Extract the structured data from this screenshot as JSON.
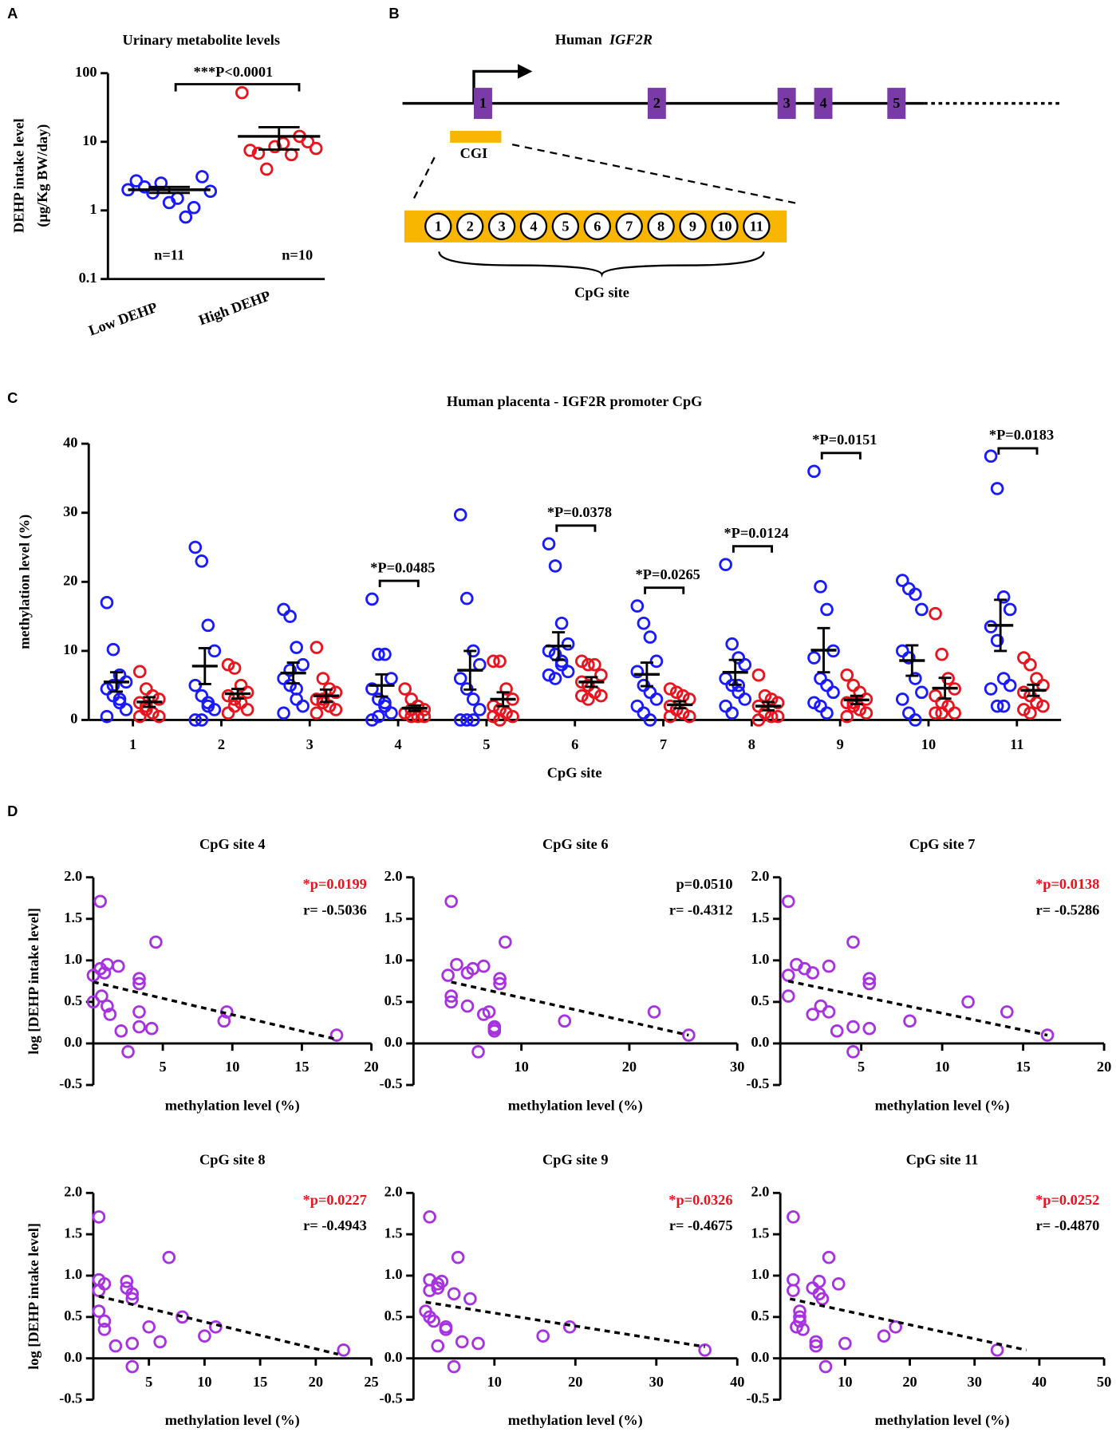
{
  "panel_labels": [
    "A",
    "B",
    "C",
    "D"
  ],
  "diagram": {
    "title": "Human",
    "gene": "IGF2R",
    "exons": [
      "1",
      "2",
      "3",
      "4",
      "5"
    ],
    "cgi": "CGI",
    "cpg_sites": [
      "1",
      "2",
      "3",
      "4",
      "5",
      "6",
      "7",
      "8",
      "9",
      "10",
      "11"
    ],
    "cpg_label": "CpG site"
  },
  "chart_data": [
    {
      "type": "strip",
      "title": "Urinary metabolite levels",
      "ylabel": [
        "DEHP intake level",
        "(μg/Kg BW/day)"
      ],
      "log": true,
      "categories": [
        "Low DEHP",
        "High DEHP"
      ],
      "ylim": [
        0.1,
        100
      ],
      "yticks": [
        0.1,
        1,
        10,
        100
      ],
      "series": [
        {
          "color": "#1a1aff",
          "values": [
            2.0,
            2.7,
            2.2,
            1.8,
            2.5,
            1.3,
            1.5,
            0.8,
            1.1,
            3.1,
            1.9
          ],
          "mean": 2.0,
          "sem": 0.2
        },
        {
          "color": "#e8141e",
          "values": [
            52,
            7.5,
            6.8,
            4.0,
            8.5,
            9.5,
            6.5,
            12,
            10,
            8.0
          ],
          "mean": 12,
          "sem": 4.3
        }
      ],
      "n_labels": [
        "n=11",
        "n=10"
      ],
      "annotation": "***P<0.0001"
    },
    {
      "type": "dotplot",
      "title": "Human placenta - IGF2R promoter CpG",
      "xlabel": "CpG site",
      "ylabel": "methylation level (%)",
      "categories": [
        "1",
        "2",
        "3",
        "4",
        "5",
        "6",
        "7",
        "8",
        "9",
        "10",
        "11"
      ],
      "ylim": [
        0,
        40
      ],
      "yticks": [
        0,
        10,
        20,
        30,
        40
      ],
      "annotations": [
        null,
        null,
        null,
        "*P=0.0485",
        null,
        "*P=0.0378",
        "*P=0.0265",
        "*P=0.0124",
        "*P=0.0151",
        null,
        "*P=0.0183"
      ],
      "series": [
        {
          "color": "#1a1aff",
          "values": [
            [
              17,
              10.2,
              6.5,
              5.5,
              4.5,
              3.5,
              2.5,
              1.5,
              0.5,
              5,
              3
            ],
            [
              25,
              23,
              13.7,
              10,
              5,
              3.5,
              2.5,
              1.5,
              0,
              0,
              2
            ],
            [
              16,
              15,
              10.5,
              8,
              6,
              5,
              3,
              2,
              1,
              7.2,
              4.5
            ],
            [
              17.5,
              9.5,
              9.5,
              6,
              4.5,
              3,
              2,
              1,
              0,
              0.5,
              2.5
            ],
            [
              29.7,
              17.6,
              10,
              8,
              6,
              4.5,
              3,
              1.5,
              0,
              0,
              0
            ],
            [
              25.5,
              22.3,
              14,
              11,
              10,
              9.5,
              8,
              7,
              6.5,
              6,
              8.5
            ],
            [
              16.5,
              14,
              12,
              8.5,
              7,
              5,
              4,
              3,
              2,
              1,
              0
            ],
            [
              22.5,
              11,
              9,
              8,
              6,
              5,
              4,
              3,
              2,
              1,
              5
            ],
            [
              36,
              19.3,
              16,
              10,
              9,
              6,
              5,
              4,
              2.5,
              2,
              1
            ],
            [
              20.2,
              19,
              18.2,
              16,
              10,
              9,
              6,
              4,
              3,
              1,
              0
            ],
            [
              38.2,
              33.5,
              17.8,
              16,
              13.5,
              11.5,
              6,
              5,
              4.5,
              2,
              2
            ]
          ],
          "means": [
            5.5,
            7.8,
            6.8,
            5,
            7.2,
            10.7,
            6.6,
            6.9,
            10.1,
            8.6,
            13.7
          ],
          "sems": [
            1.4,
            2.6,
            1.5,
            1.6,
            2.8,
            2.0,
            1.7,
            1.8,
            3.2,
            2.2,
            3.7
          ]
        },
        {
          "color": "#e8141e",
          "values": [
            [
              7,
              4.5,
              3.5,
              3,
              2.5,
              2,
              1,
              0.5,
              0.5,
              1.5
            ],
            [
              8,
              7.5,
              5,
              4,
              3.5,
              3,
              2.5,
              1.5,
              1,
              2
            ],
            [
              10.5,
              6,
              4.5,
              4,
              3,
              2.5,
              2,
              1.5,
              1,
              3
            ],
            [
              4.5,
              3,
              2,
              1.5,
              1,
              0.5,
              0.5,
              0.5,
              1,
              1.5
            ],
            [
              8.5,
              8.5,
              4.5,
              3,
              2,
              1.5,
              1,
              0.5,
              0.5,
              0
            ],
            [
              8.5,
              8,
              8,
              6.5,
              5.5,
              5,
              4,
              3.5,
              3.5,
              3
            ],
            [
              4.5,
              4,
              3.5,
              3,
              2,
              1.5,
              1,
              0.5,
              0.5,
              1.5
            ],
            [
              6.5,
              3.5,
              3,
              2.5,
              2,
              1,
              0.5,
              0.5,
              0,
              1
            ],
            [
              6.5,
              5,
              4,
              3,
              2.5,
              2,
              1.5,
              1,
              0.5,
              2.5
            ],
            [
              15.4,
              9.5,
              6,
              4.5,
              3.5,
              2.5,
              2,
              1,
              1,
              1
            ],
            [
              9,
              8,
              6,
              5,
              4,
              3.5,
              2.5,
              2,
              1.5,
              1
            ]
          ],
          "means": [
            2.6,
            3.8,
            3.5,
            1.7,
            3,
            5.5,
            2.2,
            2,
            2.9,
            4.6,
            4.3
          ],
          "sems": [
            0.7,
            0.7,
            0.9,
            0.4,
            1,
            0.7,
            0.5,
            0.6,
            0.6,
            1.5,
            0.8
          ]
        }
      ]
    },
    {
      "type": "scatter",
      "title": "CpG site 4",
      "xlabel": "methylation level (%)",
      "ylabel": "log [DEHP intake level]",
      "color": "#a632e0",
      "x": [
        0.5,
        0,
        0,
        1,
        0.8,
        0.6,
        1,
        1.2,
        1.8,
        2,
        2.5,
        3.3,
        3.3,
        3.3,
        3.3,
        4.2,
        4.5,
        9.6,
        9.4,
        17.5,
        0.5
      ],
      "y": [
        1.71,
        0.82,
        0.5,
        0.95,
        0.85,
        0.57,
        0.45,
        0.35,
        0.93,
        0.15,
        -0.1,
        0.78,
        0.72,
        0.38,
        0.2,
        0.18,
        1.22,
        0.38,
        0.27,
        0.1,
        0.9
      ],
      "xlim": [
        0,
        20
      ],
      "xticks": [
        5,
        10,
        15,
        20
      ],
      "ylim": [
        -0.5,
        2
      ],
      "yticks": [
        -0.5,
        {
          "value": 0,
          "label": "0.0"
        },
        0.5,
        {
          "value": 1,
          "label": "1.0"
        },
        1.5,
        {
          "value": 2,
          "label": "2.0"
        }
      ],
      "trend": {
        "x": [
          0,
          17.5
        ],
        "y": [
          0.74,
          0.05
        ]
      },
      "p_label": "*p=0.0199",
      "p_color": "#e8141e",
      "r_label": "r= -0.5036"
    },
    {
      "type": "scatter",
      "title": "CpG site 6",
      "xlabel": "methylation level (%)",
      "color": "#a632e0",
      "x": [
        3.5,
        3.2,
        3.5,
        4,
        5,
        3.5,
        5,
        6.5,
        6.5,
        7.5,
        6,
        8,
        8,
        7,
        7.5,
        7.5,
        8.5,
        22.3,
        14,
        25.5,
        5.5
      ],
      "y": [
        1.71,
        0.82,
        0.5,
        0.95,
        0.85,
        0.57,
        0.45,
        0.35,
        0.93,
        0.15,
        -0.1,
        0.78,
        0.72,
        0.38,
        0.2,
        0.18,
        1.22,
        0.38,
        0.27,
        0.1,
        0.9
      ],
      "xlim": [
        0,
        30
      ],
      "xticks": [
        10,
        20,
        30
      ],
      "ylim": [
        -0.5,
        2
      ],
      "yticks": [
        -0.5,
        {
          "value": 0,
          "label": "0.0"
        },
        0.5,
        {
          "value": 1,
          "label": "1.0"
        },
        1.5,
        {
          "value": 2,
          "label": "2.0"
        }
      ],
      "trend": {
        "x": [
          3.5,
          25.5
        ],
        "y": [
          0.74,
          0.1
        ]
      },
      "p_label": "p=0.0510",
      "p_color": "#000000",
      "r_label": "r= -0.4312"
    },
    {
      "type": "scatter",
      "title": "CpG site 7",
      "xlabel": "methylation level (%)",
      "color": "#a632e0",
      "x": [
        0.5,
        0.5,
        11.6,
        1,
        2,
        0.5,
        2.5,
        2,
        3,
        3.5,
        4.5,
        5.5,
        5.5,
        3,
        4.5,
        5.5,
        4.5,
        14,
        8,
        16.5,
        1.5
      ],
      "y": [
        1.71,
        0.82,
        0.5,
        0.95,
        0.85,
        0.57,
        0.45,
        0.35,
        0.93,
        0.15,
        -0.1,
        0.78,
        0.72,
        0.38,
        0.2,
        0.18,
        1.22,
        0.38,
        0.27,
        0.1,
        0.9
      ],
      "xlim": [
        0,
        20
      ],
      "xticks": [
        5,
        10,
        15,
        20
      ],
      "ylim": [
        -0.5,
        2
      ],
      "yticks": [
        -0.5,
        {
          "value": 0,
          "label": "0.0"
        },
        0.5,
        {
          "value": 1,
          "label": "1.0"
        },
        1.5,
        {
          "value": 2,
          "label": "2.0"
        }
      ],
      "trend": {
        "x": [
          0.5,
          16.5
        ],
        "y": [
          0.75,
          0.1
        ]
      },
      "p_label": "*p=0.0138",
      "p_color": "#e8141e",
      "r_label": "r= -0.5286"
    },
    {
      "type": "scatter",
      "title": "CpG site 8",
      "xlabel": "methylation level (%)",
      "ylabel": "log [DEHP intake level]",
      "color": "#a632e0",
      "x": [
        0.5,
        0.5,
        8,
        0.5,
        3,
        0.5,
        1,
        1,
        3,
        2,
        3.5,
        3.5,
        3.5,
        5,
        6,
        3.5,
        6.8,
        11,
        10,
        22.5,
        1
      ],
      "y": [
        1.71,
        0.82,
        0.5,
        0.95,
        0.85,
        0.57,
        0.45,
        0.35,
        0.93,
        0.15,
        -0.1,
        0.78,
        0.72,
        0.38,
        0.2,
        0.18,
        1.22,
        0.38,
        0.27,
        0.1,
        0.9
      ],
      "xlim": [
        0,
        25
      ],
      "xticks": [
        5,
        10,
        15,
        20,
        25
      ],
      "ylim": [
        -0.5,
        2
      ],
      "yticks": [
        -0.5,
        {
          "value": 0,
          "label": "0.0"
        },
        0.5,
        {
          "value": 1,
          "label": "1.0"
        },
        1.5,
        {
          "value": 2,
          "label": "2.0"
        }
      ],
      "trend": {
        "x": [
          0.5,
          22
        ],
        "y": [
          0.75,
          0.05
        ]
      },
      "p_label": "*p=0.0227",
      "p_color": "#e8141e",
      "r_label": "r= -0.4943"
    },
    {
      "type": "scatter",
      "title": "CpG site 9",
      "xlabel": "methylation level (%)",
      "color": "#a632e0",
      "x": [
        2,
        2,
        2,
        2,
        3,
        1.5,
        2.5,
        4,
        3.5,
        3,
        5,
        5,
        7,
        4,
        6,
        8,
        5.5,
        19.3,
        16,
        36,
        3
      ],
      "y": [
        1.71,
        0.82,
        0.5,
        0.95,
        0.85,
        0.57,
        0.45,
        0.35,
        0.93,
        0.15,
        -0.1,
        0.78,
        0.72,
        0.38,
        0.2,
        0.18,
        1.22,
        0.38,
        0.27,
        0.1,
        0.9
      ],
      "xlim": [
        0,
        40
      ],
      "xticks": [
        10,
        20,
        30,
        40
      ],
      "ylim": [
        -0.5,
        2
      ],
      "yticks": [
        -0.5,
        {
          "value": 0,
          "label": "0.0"
        },
        0.5,
        {
          "value": 1,
          "label": "1.0"
        },
        1.5,
        {
          "value": 2,
          "label": "2.0"
        }
      ],
      "trend": {
        "x": [
          1.5,
          36
        ],
        "y": [
          0.68,
          0.14
        ]
      },
      "p_label": "*p=0.0326",
      "p_color": "#e8141e",
      "r_label": "r= -0.4675"
    },
    {
      "type": "scatter",
      "title": "CpG site 11",
      "xlabel": "methylation level (%)",
      "color": "#a632e0",
      "x": [
        2,
        2,
        3,
        2,
        5,
        3,
        3,
        3.5,
        6,
        5.5,
        7,
        6,
        6.5,
        2.5,
        5.5,
        10,
        7.5,
        17.8,
        16,
        33.5,
        9
      ],
      "y": [
        1.71,
        0.82,
        0.5,
        0.95,
        0.85,
        0.57,
        0.45,
        0.35,
        0.93,
        0.15,
        -0.1,
        0.78,
        0.72,
        0.38,
        0.2,
        0.18,
        1.22,
        0.38,
        0.27,
        0.1,
        0.9
      ],
      "xlim": [
        0,
        50
      ],
      "xticks": [
        10,
        20,
        30,
        40,
        50
      ],
      "ylim": [
        -0.5,
        2
      ],
      "yticks": [
        -0.5,
        {
          "value": 0,
          "label": "0.0"
        },
        0.5,
        {
          "value": 1,
          "label": "1.0"
        },
        1.5,
        {
          "value": 2,
          "label": "2.0"
        }
      ],
      "trend": {
        "x": [
          1.5,
          38
        ],
        "y": [
          0.72,
          0.1
        ]
      },
      "p_label": "*p=0.0252",
      "p_color": "#e8141e",
      "r_label": "r= -0.4870"
    }
  ]
}
